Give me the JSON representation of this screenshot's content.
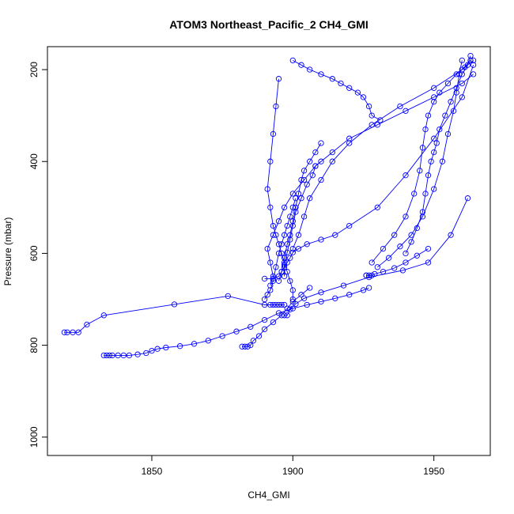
{
  "chart_data": {
    "type": "line",
    "title": "ATOM3 Northeast_Pacific_2 CH4_GMI",
    "xlabel": "CH4_GMI",
    "ylabel": "Pressure (mbar)",
    "xlim": [
      1813,
      1970
    ],
    "ylim": [
      1040,
      150
    ],
    "y_reversed": true,
    "x_ticks": [
      1850,
      1900,
      1950
    ],
    "y_ticks": [
      200,
      400,
      600,
      800,
      1000
    ],
    "marker": "open-circle",
    "color": "#0000ff",
    "grid": false,
    "series": [
      {
        "x": [
          1819,
          1820,
          1822,
          1824,
          1827,
          1833,
          1858,
          1877,
          1890,
          1892,
          1893,
          1894,
          1895,
          1896,
          1897
        ],
        "y": [
          772,
          772,
          772,
          772,
          755,
          735,
          711,
          693,
          712,
          712,
          712,
          712,
          712,
          712,
          712
        ]
      },
      {
        "x": [
          1833,
          1834,
          1835,
          1836,
          1838,
          1840,
          1842,
          1845,
          1848,
          1850,
          1852,
          1855,
          1860,
          1865,
          1870,
          1875,
          1880,
          1885,
          1890,
          1895,
          1900,
          1905,
          1910,
          1915,
          1920,
          1925,
          1927
        ],
        "y": [
          822,
          822,
          822,
          822,
          822,
          822,
          822,
          820,
          817,
          812,
          808,
          805,
          802,
          797,
          790,
          780,
          770,
          760,
          745,
          730,
          720,
          712,
          705,
          698,
          690,
          680,
          675
        ]
      },
      {
        "x": [
          1882,
          1883,
          1884,
          1885,
          1886,
          1888,
          1890,
          1893,
          1896,
          1898,
          1900,
          1903,
          1906
        ],
        "y": [
          803,
          803,
          803,
          800,
          790,
          780,
          765,
          750,
          735,
          720,
          705,
          690,
          675
        ]
      },
      {
        "x": [
          1897,
          1898,
          1899,
          1901,
          1904,
          1910,
          1918,
          1927,
          1939,
          1948,
          1956,
          1962
        ],
        "y": [
          735,
          735,
          722,
          710,
          698,
          685,
          670,
          652,
          637,
          620,
          560,
          480
        ]
      },
      {
        "x": [
          1926,
          1926,
          1927,
          1928,
          1929,
          1932,
          1936,
          1940,
          1944,
          1948
        ],
        "y": [
          648,
          648,
          648,
          648,
          645,
          640,
          632,
          620,
          605,
          590
        ]
      },
      {
        "x": [
          1890,
          1893,
          1895,
          1896,
          1897,
          1898,
          1899,
          1900,
          1902,
          1905,
          1910,
          1915,
          1920,
          1930,
          1940,
          1950,
          1960,
          1964
        ],
        "y": [
          655,
          655,
          650,
          640,
          630,
          620,
          610,
          598,
          590,
          580,
          570,
          560,
          540,
          500,
          430,
          350,
          260,
          190
        ]
      },
      {
        "x": [
          1900,
          1900,
          1899,
          1898,
          1897,
          1896,
          1895,
          1894,
          1893,
          1892,
          1891,
          1892,
          1893,
          1894,
          1895
        ],
        "y": [
          700,
          680,
          660,
          640,
          620,
          600,
          580,
          560,
          540,
          500,
          460,
          400,
          340,
          280,
          220
        ]
      },
      {
        "x": [
          1895,
          1896,
          1897,
          1898,
          1899,
          1900,
          1901,
          1902,
          1903,
          1904,
          1906,
          1908,
          1910
        ],
        "y": [
          660,
          640,
          610,
          580,
          560,
          530,
          500,
          470,
          440,
          420,
          400,
          380,
          360
        ]
      },
      {
        "x": [
          1900,
          1902,
          1904,
          1906,
          1910,
          1914,
          1920,
          1928,
          1938,
          1950,
          1960,
          1963
        ],
        "y": [
          590,
          560,
          520,
          480,
          440,
          400,
          360,
          320,
          280,
          240,
          200,
          180
        ]
      },
      {
        "x": [
          1897,
          1897,
          1898,
          1899,
          1900,
          1901,
          1903,
          1905,
          1907,
          1908,
          1910
        ],
        "y": [
          650,
          625,
          598,
          570,
          540,
          510,
          480,
          450,
          430,
          410,
          400
        ]
      },
      {
        "x": [
          1931,
          1928,
          1927,
          1925,
          1923,
          1920,
          1917,
          1914,
          1910,
          1906,
          1903,
          1900
        ],
        "y": [
          310,
          300,
          280,
          260,
          250,
          240,
          230,
          220,
          210,
          200,
          190,
          180
        ]
      },
      {
        "x": [
          1890,
          1891,
          1892,
          1893,
          1894,
          1895,
          1896,
          1897,
          1898,
          1899,
          1900,
          1901
        ],
        "y": [
          700,
          690,
          680,
          660,
          630,
          600,
          580,
          560,
          540,
          520,
          500,
          480
        ]
      },
      {
        "x": [
          1940,
          1942,
          1944,
          1946,
          1947,
          1948,
          1949,
          1950,
          1951,
          1952,
          1954,
          1956,
          1958,
          1960,
          1962,
          1963
        ],
        "y": [
          600,
          575,
          545,
          510,
          470,
          430,
          400,
          380,
          360,
          330,
          300,
          270,
          240,
          210,
          190,
          170
        ]
      },
      {
        "x": [
          1930,
          1934,
          1938,
          1942,
          1946,
          1950,
          1953,
          1955,
          1957,
          1958,
          1959,
          1960
        ],
        "y": [
          630,
          610,
          585,
          560,
          520,
          460,
          400,
          340,
          290,
          250,
          210,
          180
        ]
      },
      {
        "x": [
          1928,
          1932,
          1936,
          1940,
          1943,
          1945,
          1946,
          1947,
          1948,
          1950,
          1952,
          1955,
          1958,
          1961,
          1964
        ],
        "y": [
          620,
          590,
          560,
          520,
          470,
          420,
          370,
          330,
          300,
          270,
          250,
          230,
          210,
          195,
          180
        ]
      },
      {
        "x": [
          1892,
          1893,
          1892,
          1891,
          1893,
          1895,
          1897,
          1900,
          1904,
          1908,
          1914,
          1920,
          1930,
          1940,
          1950,
          1960,
          1964
        ],
        "y": [
          670,
          650,
          620,
          590,
          560,
          530,
          500,
          470,
          440,
          410,
          380,
          350,
          320,
          290,
          260,
          230,
          210
        ]
      }
    ]
  }
}
